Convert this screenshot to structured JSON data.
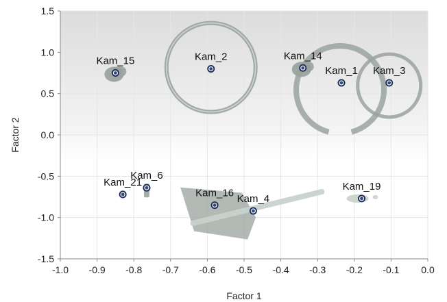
{
  "chart_data": {
    "type": "scatter",
    "xlabel": "Factor 1",
    "ylabel": "Factor 2",
    "xlim": [
      -1.0,
      0.0
    ],
    "ylim": [
      -1.5,
      1.5
    ],
    "xticks": [
      "-1.0",
      "-0.9",
      "-0.8",
      "-0.7",
      "-0.6",
      "-0.5",
      "-0.4",
      "-0.3",
      "-0.2",
      "-0.1",
      "0.0"
    ],
    "yticks": [
      "1.5",
      "1.0",
      "0.5",
      "0.0",
      "-0.5",
      "-1.0",
      "-1.5"
    ],
    "grid": true,
    "points": [
      {
        "label": "Kam_15",
        "x": -0.85,
        "y": 0.75,
        "label_color": "#111111",
        "object": "lump"
      },
      {
        "label": "Kam_2",
        "x": -0.59,
        "y": 0.8,
        "label_color": "#111111",
        "object": "ring"
      },
      {
        "label": "Kam_14",
        "x": -0.34,
        "y": 0.81,
        "label_color": "#111111",
        "object": "lump"
      },
      {
        "label": "Kam_1",
        "x": -0.235,
        "y": 0.63,
        "label_color": "#111111",
        "object": "open-ring"
      },
      {
        "label": "Kam_3",
        "x": -0.105,
        "y": 0.63,
        "label_color": "#111111",
        "object": "ring"
      },
      {
        "label": "Kam_21",
        "x": -0.83,
        "y": -0.72,
        "label_color": "#111111",
        "object": "none"
      },
      {
        "label": "Kam_6",
        "x": -0.765,
        "y": -0.64,
        "label_color": "#c0141c",
        "object": "peg"
      },
      {
        "label": "Kam_16",
        "x": -0.58,
        "y": -0.85,
        "label_color": "#111111",
        "object": "socket"
      },
      {
        "label": "Kam_4",
        "x": -0.475,
        "y": -0.92,
        "label_color": "#111111",
        "object": "rod"
      },
      {
        "label": "Kam_19",
        "x": -0.18,
        "y": -0.77,
        "label_color": "#111111",
        "object": "fragment"
      }
    ],
    "colors": {
      "marker_fill": "#2e4a86",
      "marker_ring": "#ffffff",
      "marker_outline": "#1b2d57",
      "grid": "#e6e6e6",
      "artifact": "#9aa39e",
      "artifact_light": "#c9d3cd"
    }
  }
}
